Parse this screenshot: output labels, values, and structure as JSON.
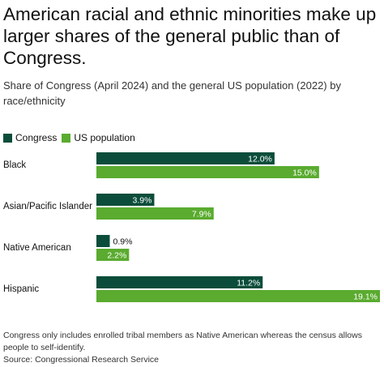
{
  "title": "American racial and ethnic minorities make up larger shares of the general public than of Congress.",
  "subtitle": "Share of Congress (April 2024) and the general US population (2022) by race/ethnicity",
  "footnote": "Congress only includes enrolled tribal members as Native American whereas the census allows people to self-identify.",
  "source": "Source: Congressional Research Service",
  "colors": {
    "congress": "#0b4d3a",
    "us_population": "#5aab2f"
  },
  "chart_data": {
    "type": "bar",
    "orientation": "horizontal",
    "categories": [
      "Black",
      "Asian/Pacific Islander",
      "Native American",
      "Hispanic"
    ],
    "series": [
      {
        "name": "Congress",
        "values": [
          12.0,
          3.9,
          0.9,
          11.2
        ],
        "labels": [
          "12.0%",
          "3.9%",
          "0.9%",
          "11.2%"
        ]
      },
      {
        "name": "US population",
        "values": [
          15.0,
          7.9,
          2.2,
          19.1
        ],
        "labels": [
          "15.0%",
          "7.9%",
          "2.2%",
          "19.1%"
        ]
      }
    ],
    "xlim": [
      0,
      19.1
    ],
    "legend": "top-left",
    "grid": false
  }
}
